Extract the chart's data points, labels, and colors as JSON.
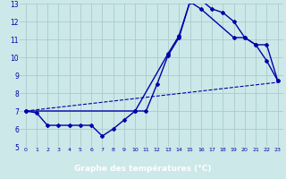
{
  "xlabel": "Graphe des températures (°C)",
  "bg_color": "#cce8e8",
  "line_color": "#0000aa",
  "grid_color": "#aacccc",
  "xlabel_bg": "#0000aa",
  "xlabel_fg": "#ffffff",
  "xlim": [
    -0.5,
    23.5
  ],
  "ylim": [
    5,
    13
  ],
  "yticks": [
    5,
    6,
    7,
    8,
    9,
    10,
    11,
    12,
    13
  ],
  "xticks": [
    0,
    1,
    2,
    3,
    4,
    5,
    6,
    7,
    8,
    9,
    10,
    11,
    12,
    13,
    14,
    15,
    16,
    17,
    18,
    19,
    20,
    21,
    22,
    23
  ],
  "line1_x": [
    0,
    1,
    2,
    3,
    4,
    5,
    6,
    7,
    8,
    9,
    10,
    11,
    12,
    13,
    14,
    15,
    16,
    17,
    18,
    19,
    20,
    21,
    22,
    23
  ],
  "line1_y": [
    7.0,
    6.9,
    6.2,
    6.2,
    6.2,
    6.2,
    6.2,
    5.6,
    6.0,
    6.5,
    7.0,
    7.0,
    8.5,
    10.1,
    11.1,
    13.1,
    13.2,
    12.7,
    12.5,
    12.0,
    11.1,
    10.7,
    9.8,
    8.7
  ],
  "line2_x": [
    0,
    23
  ],
  "line2_y": [
    7.0,
    8.6
  ],
  "line3_x": [
    0,
    10,
    13,
    14,
    15,
    16,
    19,
    20,
    21,
    22,
    23
  ],
  "line3_y": [
    7.0,
    7.0,
    10.2,
    11.2,
    13.1,
    12.7,
    11.1,
    11.1,
    10.7,
    10.7,
    8.7
  ]
}
